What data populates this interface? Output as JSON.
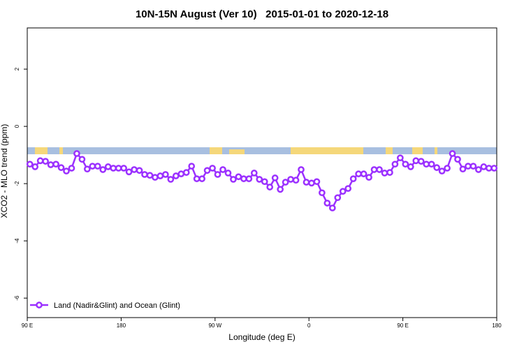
{
  "chart_data": {
    "type": "line",
    "title": "10N-15N August (Ver 10)   2015-01-01 to 2020-12-18",
    "xlabel": "Longitude (deg E)",
    "ylabel": "XCO2 - MLO trend (ppm)",
    "xlim": [
      90,
      540
    ],
    "ylim": [
      -6.68,
      3.44
    ],
    "xticks": [
      {
        "value": 90,
        "label": "90 E"
      },
      {
        "value": 180,
        "label": "180"
      },
      {
        "value": 270,
        "label": "90 W"
      },
      {
        "value": 360,
        "label": "0"
      },
      {
        "value": 450,
        "label": "90 E"
      },
      {
        "value": 540,
        "label": "180"
      }
    ],
    "yticks": [
      -6,
      -4,
      -2,
      0,
      2
    ],
    "legend": "bottom-left",
    "x": [
      92.5,
      97.5,
      102.5,
      107.5,
      112.5,
      117.5,
      122.5,
      127.5,
      132.5,
      137.5,
      142.5,
      147.5,
      152.5,
      157.5,
      162.5,
      167.5,
      172.5,
      177.5,
      182.5,
      187.5,
      192.5,
      197.5,
      202.5,
      207.5,
      212.5,
      217.5,
      222.5,
      227.5,
      232.5,
      237.5,
      242.5,
      247.5,
      252.5,
      257.5,
      262.5,
      267.5,
      272.5,
      277.5,
      282.5,
      287.5,
      292.5,
      297.5,
      302.5,
      307.5,
      312.5,
      317.5,
      322.5,
      327.5,
      332.5,
      337.5,
      342.5,
      347.5,
      352.5,
      357.5,
      362.5,
      367.5,
      372.5,
      377.5,
      382.5,
      387.5,
      392.5,
      397.5,
      402.5,
      407.5,
      412.5,
      417.5,
      422.5,
      427.5,
      432.5,
      437.5,
      442.5,
      447.5,
      452.5,
      457.5,
      462.5,
      467.5,
      472.5,
      477.5,
      482.5,
      487.5,
      492.5,
      497.5,
      502.5,
      507.5,
      512.5,
      517.5,
      522.5,
      527.5,
      532.5,
      537.5
    ],
    "series": [
      {
        "name": "Land (Nadir&Glint) and Ocean (Glint)",
        "color": "#9b30ff",
        "values": [
          -1.32,
          -1.41,
          -1.2,
          -1.22,
          -1.34,
          -1.32,
          -1.44,
          -1.56,
          -1.46,
          -0.95,
          -1.15,
          -1.49,
          -1.39,
          -1.39,
          -1.51,
          -1.41,
          -1.46,
          -1.46,
          -1.46,
          -1.59,
          -1.51,
          -1.54,
          -1.68,
          -1.71,
          -1.78,
          -1.73,
          -1.68,
          -1.85,
          -1.73,
          -1.66,
          -1.61,
          -1.39,
          -1.83,
          -1.83,
          -1.54,
          -1.46,
          -1.68,
          -1.51,
          -1.63,
          -1.85,
          -1.76,
          -1.83,
          -1.83,
          -1.63,
          -1.85,
          -1.93,
          -2.12,
          -1.8,
          -2.2,
          -1.95,
          -1.85,
          -1.88,
          -1.51,
          -1.95,
          -1.98,
          -1.93,
          -2.32,
          -2.68,
          -2.85,
          -2.49,
          -2.27,
          -2.17,
          -1.83,
          -1.66,
          -1.66,
          -1.78,
          -1.51,
          -1.51,
          -1.63,
          -1.61,
          -1.32,
          -1.1,
          -1.32,
          -1.41,
          -1.2,
          -1.22,
          -1.32,
          -1.32,
          -1.44,
          -1.56,
          -1.46,
          -0.95,
          -1.15,
          -1.49,
          -1.39,
          -1.39,
          -1.51,
          -1.41,
          -1.46,
          -1.46
        ]
      }
    ]
  }
}
